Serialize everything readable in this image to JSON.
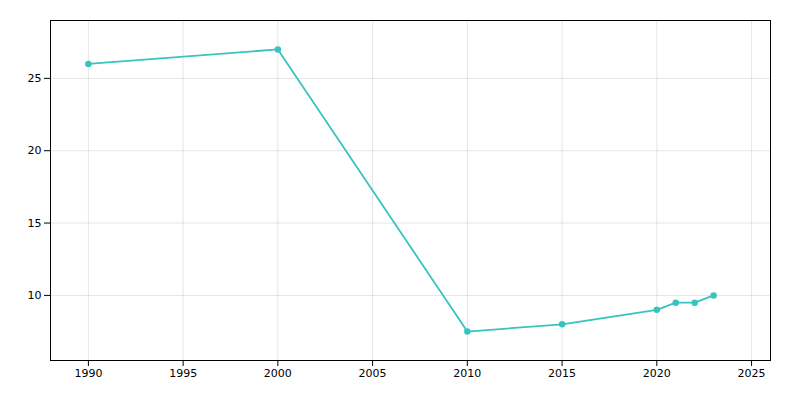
{
  "chart_data": {
    "type": "line",
    "x": [
      1990,
      2000,
      2010,
      2015,
      2020,
      2021,
      2022,
      2023
    ],
    "values": [
      26,
      27,
      7.5,
      8,
      9,
      9.5,
      9.5,
      10
    ],
    "color": "#38c4be",
    "marker": "circle",
    "xlim": [
      1988,
      2026
    ],
    "ylim": [
      5.5,
      29
    ],
    "xticks": [
      1990,
      1995,
      2000,
      2005,
      2010,
      2015,
      2020,
      2025
    ],
    "yticks": [
      10,
      15,
      20,
      25
    ],
    "grid": true
  }
}
